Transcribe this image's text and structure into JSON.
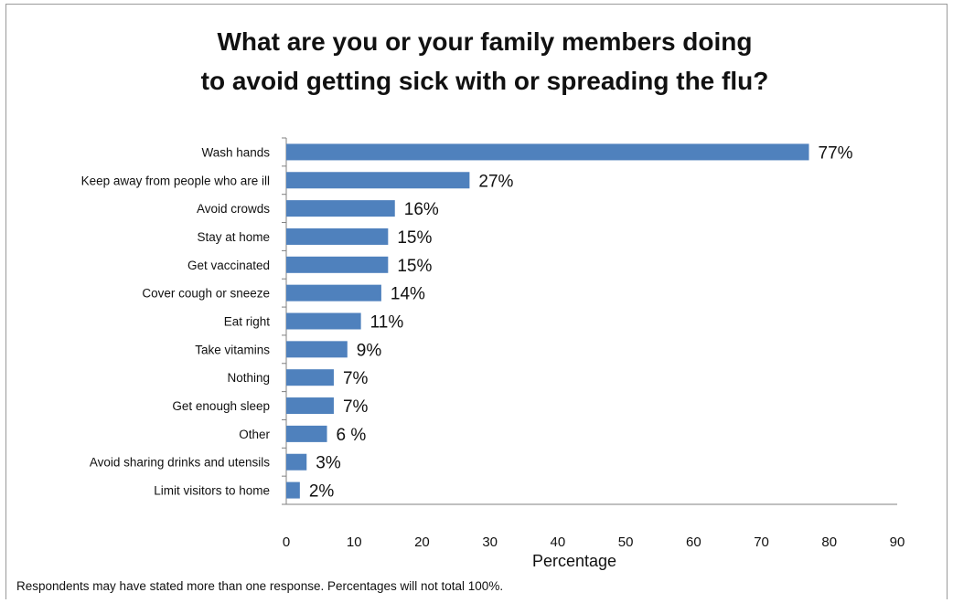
{
  "chart_data": {
    "type": "bar",
    "orientation": "horizontal",
    "title_lines": [
      "What are you or your family members doing",
      "to avoid getting sick with or spreading the flu?"
    ],
    "categories": [
      "Wash hands",
      "Keep away from people who are ill",
      "Avoid crowds",
      "Stay at home",
      "Get vaccinated",
      "Cover cough or sneeze",
      "Eat right",
      "Take vitamins",
      "Nothing",
      "Get enough sleep",
      "Other",
      "Avoid sharing drinks and utensils",
      "Limit visitors to home"
    ],
    "values": [
      77,
      27,
      16,
      15,
      15,
      14,
      11,
      9,
      7,
      7,
      6,
      3,
      2
    ],
    "data_labels": [
      "77%",
      "27%",
      "16%",
      "15%",
      "15%",
      "14%",
      "11%",
      "9%",
      "7%",
      "7%",
      "6 %",
      "3%",
      "2%"
    ],
    "xlabel": "Percentage",
    "ylabel": "",
    "xlim": [
      0,
      90
    ],
    "x_ticks": [
      0,
      10,
      20,
      30,
      40,
      50,
      60,
      70,
      80,
      90
    ],
    "grid": false,
    "legend": "none",
    "bar_color": "#4f81bd"
  },
  "footnote": "Respondents may have stated more than one response.  Percentages will not total 100%."
}
